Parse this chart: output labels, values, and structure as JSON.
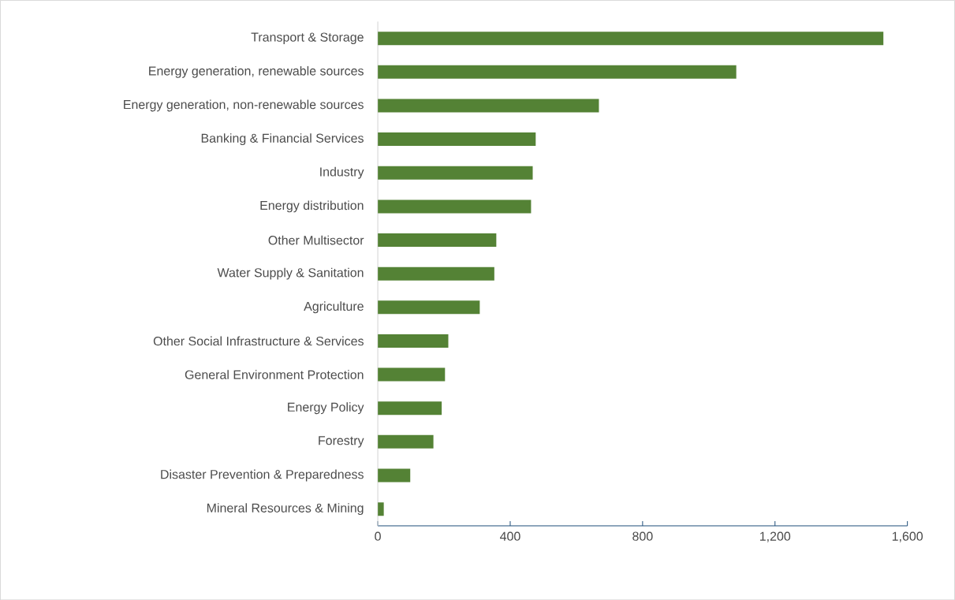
{
  "chart_data": {
    "type": "bar",
    "orientation": "horizontal",
    "categories": [
      "Transport & Storage",
      "Energy generation, renewable sources",
      "Energy generation, non-renewable sources",
      "Banking & Financial Services",
      "Industry",
      "Energy distribution",
      "Other Multisector",
      "Water Supply & Sanitation",
      "Agriculture",
      "Other Social Infrastructure & Services",
      "General Environment Protection",
      "Energy Policy",
      "Forestry",
      "Disaster Prevention & Preparedness",
      "Mineral Resources & Mining"
    ],
    "values": [
      1528,
      1083,
      668,
      477,
      468,
      463,
      358,
      352,
      308,
      213,
      203,
      193,
      168,
      98,
      18
    ],
    "color": "#548235",
    "xlim": [
      0,
      1600
    ],
    "xticks": [
      0,
      {
        "value": 400,
        "label": "400"
      },
      {
        "value": 800,
        "label": "800"
      },
      {
        "value": 1200,
        "label": "1,200"
      },
      {
        "value": 1600,
        "label": "1,600"
      }
    ],
    "grid": false
  }
}
